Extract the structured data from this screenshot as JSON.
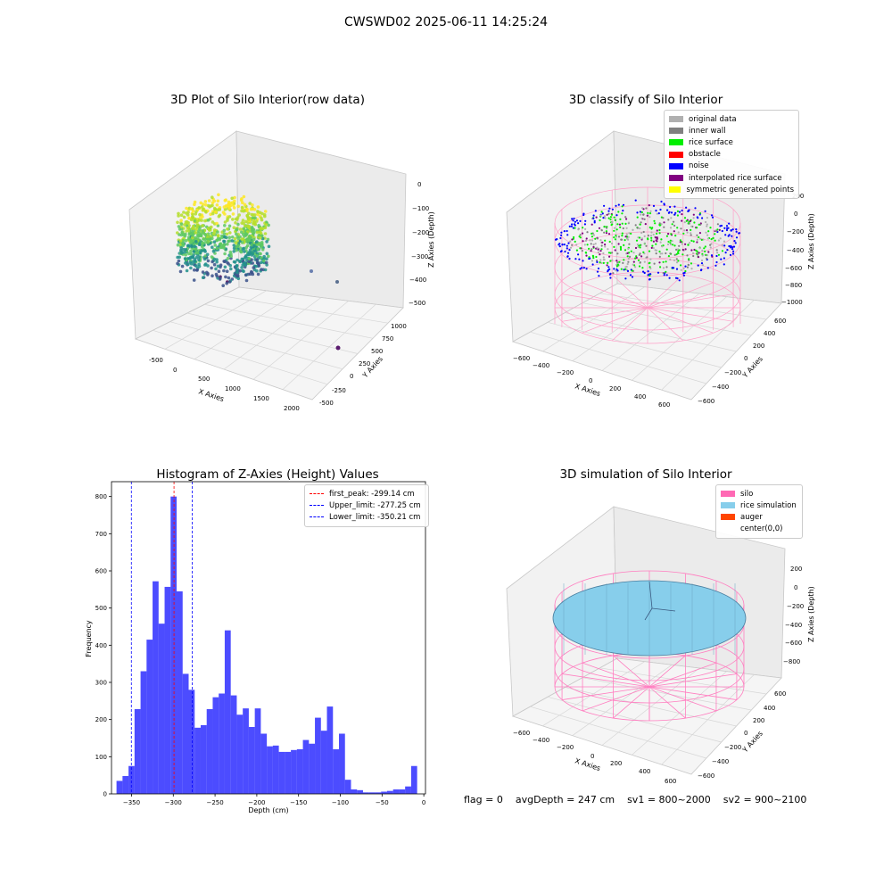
{
  "suptitle": "CWSWD02 2025-06-11 14:25:24",
  "status": {
    "flag": "flag = 0",
    "avg_depth": "avgDepth = 247 cm",
    "sv1": "sv1 = 800~2000",
    "sv2": "sv2 = 900~2100"
  },
  "chart_data": [
    {
      "type": "scatter",
      "title": "3D Plot of Silo Interior(row data)",
      "xlabel": "X Axies",
      "ylabel": "Y Axies",
      "zlabel": "Z Axies (Depth)",
      "x_ticks": [
        "-500",
        "0",
        "500",
        "1000",
        "1500",
        "2000"
      ],
      "y_ticks": [
        "-500",
        "-250",
        "0",
        "250",
        "500",
        "750",
        "1000"
      ],
      "z_ticks": [
        "0",
        "−100",
        "−200",
        "−300",
        "−400",
        "−500"
      ],
      "colormap": "viridis",
      "grid": true
    },
    {
      "type": "scatter",
      "title": "3D classify of Silo Interior",
      "xlabel": "X Axies",
      "ylabel": "Y Axies",
      "zlabel": "Z Axies (Depth)",
      "x_ticks": [
        "−600",
        "−400",
        "−200",
        "0",
        "200",
        "400",
        "600"
      ],
      "y_ticks": [
        "−600",
        "−400",
        "−200",
        "0",
        "200",
        "400",
        "600"
      ],
      "z_ticks": [
        "200",
        "0",
        "−200",
        "−400",
        "−600",
        "−800",
        "−1000"
      ],
      "legend_position": "top-right",
      "legend": [
        {
          "label": "original data",
          "color": "#b0b0b0"
        },
        {
          "label": "inner wall",
          "color": "#808080"
        },
        {
          "label": "rice surface",
          "color": "#00ee00"
        },
        {
          "label": "obstacle",
          "color": "#ff0000"
        },
        {
          "label": "noise",
          "color": "#0000ff"
        },
        {
          "label": "interpolated rice surface",
          "color": "#800080"
        },
        {
          "label": "symmetric generated points",
          "color": "#ffff00"
        }
      ],
      "grid": true
    },
    {
      "type": "bar",
      "title": "Histogram of Z-Axies (Height) Values",
      "xlabel": "Depth (cm)",
      "ylabel": "Frequency",
      "xlim": [
        -374,
        2
      ],
      "ylim": [
        0,
        840
      ],
      "x_ticks": [
        -350,
        -300,
        -250,
        -200,
        -150,
        -100,
        -50,
        0
      ],
      "y_ticks": [
        0,
        100,
        200,
        300,
        400,
        500,
        600,
        700,
        800
      ],
      "bin_start": -368,
      "bin_width": 7.2,
      "values": [
        35,
        48,
        75,
        228,
        330,
        415,
        572,
        458,
        557,
        800,
        545,
        323,
        280,
        178,
        185,
        228,
        260,
        270,
        440,
        265,
        213,
        230,
        180,
        230,
        162,
        128,
        130,
        113,
        113,
        118,
        120,
        145,
        135,
        205,
        170,
        235,
        120,
        162,
        38,
        12,
        10,
        4,
        4,
        4,
        6,
        8,
        12,
        12,
        20,
        75
      ],
      "bar_color": "#0000ff",
      "legend_position": "top-right",
      "lines": [
        {
          "label": "first_peak: -299.14 cm",
          "x": -299.14,
          "color": "#ff0000"
        },
        {
          "label": "Upper_limit: -277.25 cm",
          "x": -277.25,
          "color": "#0000ff"
        },
        {
          "label": "Lower_limit: -350.21 cm",
          "x": -350.21,
          "color": "#0000ff"
        }
      ]
    },
    {
      "type": "scatter",
      "title": "3D simulation of Silo Interior",
      "xlabel": "X Axies",
      "ylabel": "Y Axies",
      "zlabel": "Z Axies (Depth)",
      "x_ticks": [
        "−600",
        "−400",
        "−200",
        "0",
        "200",
        "400",
        "600"
      ],
      "y_ticks": [
        "−600",
        "−400",
        "−200",
        "0",
        "200",
        "400",
        "600"
      ],
      "z_ticks": [
        "200",
        "0",
        "−200",
        "−400",
        "−600",
        "−800"
      ],
      "legend_position": "top-right",
      "legend": [
        {
          "label": "silo",
          "color": "#ff69b4"
        },
        {
          "label": "rice simulation",
          "color": "#87ceeb"
        },
        {
          "label": "auger",
          "color": "#ff4500"
        },
        {
          "label": "center(0,0)",
          "color": "#ffffff"
        }
      ],
      "grid": true
    }
  ]
}
